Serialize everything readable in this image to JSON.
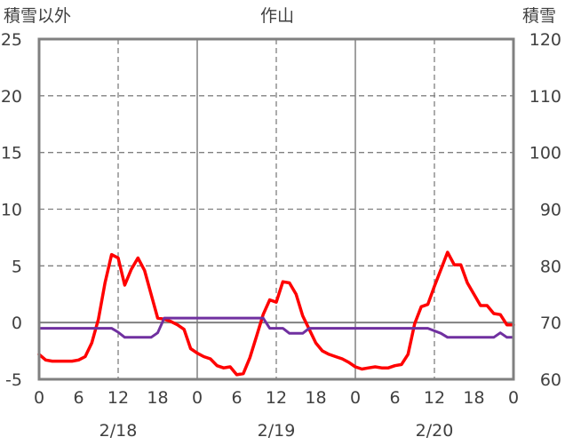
{
  "chart_data": {
    "type": "line",
    "title": "作山",
    "ylabel_left": "積雪以外",
    "ylabel_right": "積雪",
    "ylim_left": [
      -5,
      25
    ],
    "ylim_right": [
      60,
      120
    ],
    "yticks_left": [
      "25",
      "20",
      "15",
      "10",
      "5",
      "0",
      "-5"
    ],
    "yticks_right": [
      "120",
      "110",
      "100",
      "90",
      "80",
      "70",
      "60"
    ],
    "xlim_hours": [
      0,
      72
    ],
    "xtick_labels": [
      "0",
      "6",
      "12",
      "18",
      "0",
      "6",
      "12",
      "18",
      "0",
      "6",
      "12",
      "18",
      "0"
    ],
    "date_labels": [
      "2/18",
      "2/19",
      "2/20"
    ],
    "grid": "dashed",
    "colors": {
      "temperature": "#ff0000",
      "snow_depth": "#7030a0",
      "frame": "#808080",
      "grid": "#808080",
      "text": "#404040"
    },
    "series": [
      {
        "axis": "left",
        "x": [
          0,
          1,
          2,
          3,
          4,
          5,
          6,
          7,
          8,
          9,
          10,
          11,
          12,
          13,
          14,
          15,
          16,
          17,
          18,
          19,
          20,
          21,
          22,
          23,
          24,
          25,
          26,
          27,
          28,
          29,
          30,
          31,
          32,
          33,
          34,
          35,
          36,
          37,
          38,
          39,
          40,
          41,
          42,
          43,
          44,
          45,
          46,
          47,
          48,
          49,
          50,
          51,
          52,
          53,
          54,
          55,
          56,
          57,
          58,
          59,
          60,
          61,
          62,
          63,
          64,
          65,
          66,
          67,
          68,
          69,
          70,
          71,
          72
        ],
        "values": [
          -2.8,
          -3.3,
          -3.4,
          -3.4,
          -3.4,
          -3.4,
          -3.3,
          -3.0,
          -1.8,
          0.3,
          3.5,
          6.0,
          5.7,
          3.3,
          4.7,
          5.7,
          4.6,
          2.5,
          0.4,
          0.3,
          0.1,
          -0.2,
          -0.6,
          -2.3,
          -2.7,
          -3.0,
          -3.2,
          -3.8,
          -4.0,
          -3.9,
          -4.6,
          -4.5,
          -3.1,
          -1.2,
          0.7,
          2.0,
          1.8,
          3.6,
          3.5,
          2.5,
          0.6,
          -0.6,
          -1.8,
          -2.5,
          -2.8,
          -3.0,
          -3.2,
          -3.5,
          -3.9,
          -4.1,
          -4.0,
          -3.9,
          -4.0,
          -4.0,
          -3.8,
          -3.7,
          -2.8,
          -0.1,
          1.4,
          1.6,
          3.2,
          4.7,
          6.2,
          5.1,
          5.1,
          3.5,
          2.5,
          1.5,
          1.5,
          0.8,
          0.7,
          -0.2,
          -0.2
        ]
      },
      {
        "axis": "right",
        "x": [
          0,
          11,
          12,
          13,
          17,
          18,
          19,
          34,
          35,
          37,
          38,
          40,
          41,
          58,
          59,
          61,
          62,
          69,
          70,
          71,
          72
        ],
        "values": [
          69,
          69,
          68.3,
          67.4,
          67.4,
          68.2,
          70.8,
          70.8,
          69,
          69,
          68.1,
          68.1,
          69,
          69,
          69,
          68.1,
          67.4,
          67.4,
          68.2,
          67.4,
          67.4
        ]
      }
    ]
  }
}
